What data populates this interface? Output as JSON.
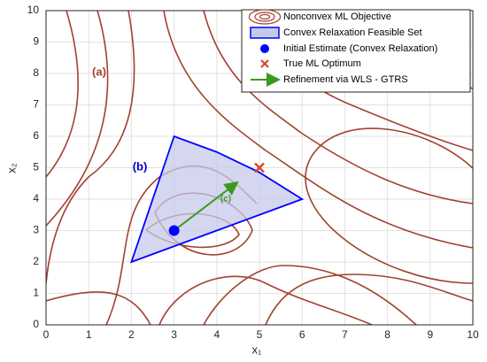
{
  "chart_data": {
    "type": "contour",
    "xlabel": "x₁",
    "ylabel": "x₂",
    "xlim": [
      0,
      10
    ],
    "ylim": [
      0,
      10
    ],
    "xticks": [
      0,
      1,
      2,
      3,
      4,
      5,
      6,
      7,
      8,
      9,
      10
    ],
    "yticks": [
      0,
      1,
      2,
      3,
      4,
      5,
      6,
      7,
      8,
      9,
      10
    ],
    "grid": true,
    "objective": {
      "name": "Nonconvex ML Objective",
      "color": "#a2412f"
    },
    "feasible_set": {
      "name": "Convex Relaxation Feasible Set",
      "color": "#0000ff",
      "fill": "#c5c9ea",
      "x": [
        2,
        3,
        4,
        5,
        6
      ],
      "y": [
        2,
        6,
        5.5,
        4.85,
        4
      ]
    },
    "initial_estimate": {
      "name": "Initial Estimate (Convex Relaxation)",
      "color": "#0000ff",
      "x": 3,
      "y": 3
    },
    "optimum": {
      "name": "True ML Optimum",
      "color": "#d9472b",
      "x": 5,
      "y": 5
    },
    "refinement": {
      "name": "Refinement via WLS - GTRS",
      "color": "#3a9a1e",
      "x": [
        3,
        4.45
      ],
      "y": [
        3,
        4.5
      ]
    },
    "annotations": [
      {
        "text": "(a)",
        "color": "#a2412f"
      },
      {
        "text": "(b)",
        "color": "#0000cc"
      },
      {
        "text": "(c)",
        "color": "#3a9a1e"
      }
    ]
  }
}
